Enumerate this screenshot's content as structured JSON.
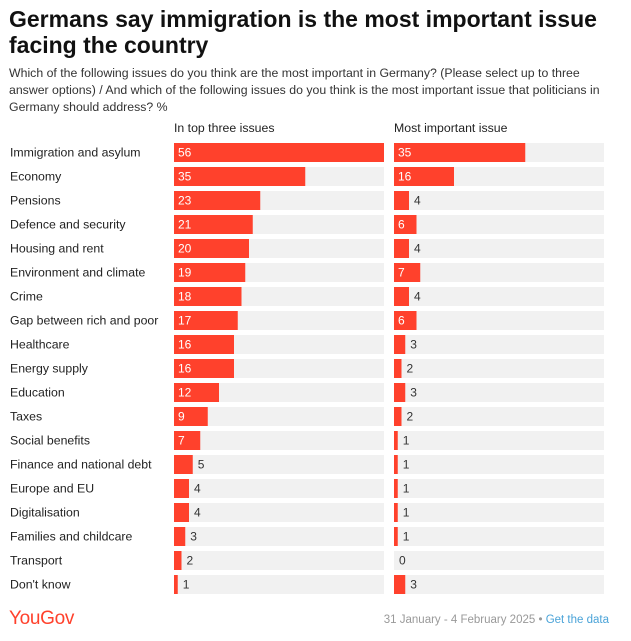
{
  "header": {
    "title": "Germans say immigration is the most important issue facing the country",
    "subtitle": "Which of the following issues do you think are the most important in Germany? (Please select up to three answer options) / And which of the following issues do you think is the most important issue that politicians in Germany should address? %"
  },
  "footer": {
    "brand": "YouGov",
    "date_range": "31 January - 4 February 2025",
    "separator": " • ",
    "link_text": "Get the data"
  },
  "colors": {
    "bar": "#ff412c",
    "track": "#f1f1f1",
    "label_on_bar": "#ffffff",
    "label_off_bar": "#333333"
  },
  "chart_data": {
    "type": "bar",
    "orientation": "horizontal",
    "categories": [
      "Immigration and asylum",
      "Economy",
      "Pensions",
      "Defence and security",
      "Housing and rent",
      "Environment and climate",
      "Crime",
      "Gap between rich and poor",
      "Healthcare",
      "Energy supply",
      "Education",
      "Taxes",
      "Social benefits",
      "Finance and national debt",
      "Europe and EU",
      "Digitalisation",
      "Families and childcare",
      "Transport",
      "Don't know"
    ],
    "series": [
      {
        "name": "In top three issues",
        "values": [
          56,
          35,
          23,
          21,
          20,
          19,
          18,
          17,
          16,
          16,
          12,
          9,
          7,
          5,
          4,
          4,
          3,
          2,
          1
        ],
        "xlim": [
          0,
          56
        ]
      },
      {
        "name": "Most important issue",
        "values": [
          35,
          16,
          4,
          6,
          4,
          7,
          4,
          6,
          3,
          2,
          3,
          2,
          1,
          1,
          1,
          1,
          1,
          0,
          3
        ],
        "xlim": [
          0,
          56
        ]
      }
    ],
    "data_labels": true,
    "legend": "column headers"
  }
}
